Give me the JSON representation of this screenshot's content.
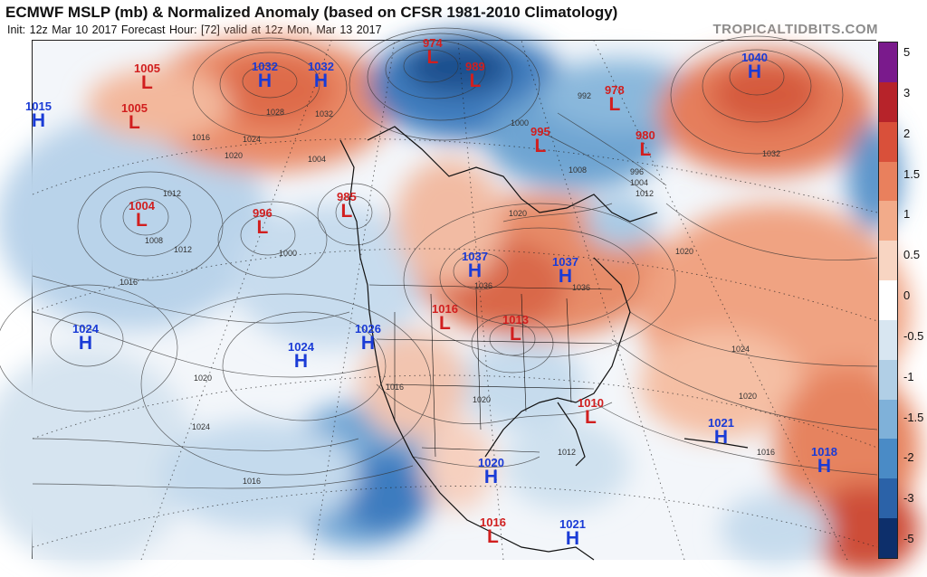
{
  "header": {
    "title": "ECMWF MSLP (mb) & Normalized Anomaly (based on CFSR 1981-2010 Climatology)",
    "subtitle": "Init: 12z Mar 10 2017   Forecast Hour: [72]   valid at 12z Mon, Mar 13 2017",
    "brand": "TROPICALTIDBITS.COM"
  },
  "colorbar": {
    "labels": [
      "5",
      "3",
      "2",
      "1.5",
      "1",
      "0.5",
      "0",
      "-0.5",
      "-1",
      "-1.5",
      "-2",
      "-3",
      "-5"
    ],
    "colors": [
      "#7a1a8c",
      "#b7232a",
      "#d9503a",
      "#e9805d",
      "#f2ab8a",
      "#f8d5c2",
      "#ffffff",
      "#d8e6f1",
      "#b1cfe6",
      "#7fb1d9",
      "#4a8bc6",
      "#2b62a8",
      "#0d2f6b"
    ]
  },
  "pressure_centers": [
    {
      "type": "L",
      "value": "1005"
    },
    {
      "type": "H",
      "value": "1032"
    },
    {
      "type": "H",
      "value": "1032"
    },
    {
      "type": "L",
      "value": "974"
    },
    {
      "type": "L",
      "value": "989"
    },
    {
      "type": "L",
      "value": "978"
    },
    {
      "type": "H",
      "value": "1040"
    },
    {
      "type": "H",
      "value": "1015"
    },
    {
      "type": "L",
      "value": "1005"
    },
    {
      "type": "L",
      "value": "995"
    },
    {
      "type": "L",
      "value": "980"
    },
    {
      "type": "L",
      "value": "1004"
    },
    {
      "type": "L",
      "value": "996"
    },
    {
      "type": "L",
      "value": "985"
    },
    {
      "type": "H",
      "value": "1037"
    },
    {
      "type": "H",
      "value": "1037"
    },
    {
      "type": "H",
      "value": "1024"
    },
    {
      "type": "H",
      "value": "1026"
    },
    {
      "type": "L",
      "value": "1016"
    },
    {
      "type": "L",
      "value": "1013"
    },
    {
      "type": "H",
      "value": "1024"
    },
    {
      "type": "L",
      "value": "1010"
    },
    {
      "type": "H",
      "value": "1021"
    },
    {
      "type": "H",
      "value": "1018"
    },
    {
      "type": "H",
      "value": "1020"
    },
    {
      "type": "L",
      "value": "1016"
    },
    {
      "type": "H",
      "value": "1021"
    }
  ],
  "isobar_labels": [
    "1016",
    "1012",
    "1008",
    "1020",
    "1024",
    "1028",
    "1032",
    "1000",
    "1004",
    "1016",
    "1012",
    "1020",
    "1024",
    "1016",
    "1020",
    "1012",
    "1016",
    "1024",
    "1020",
    "1016",
    "1036",
    "1036",
    "1020",
    "992",
    "996",
    "1004",
    "1000",
    "1032",
    "1008",
    "1012",
    "1020"
  ]
}
